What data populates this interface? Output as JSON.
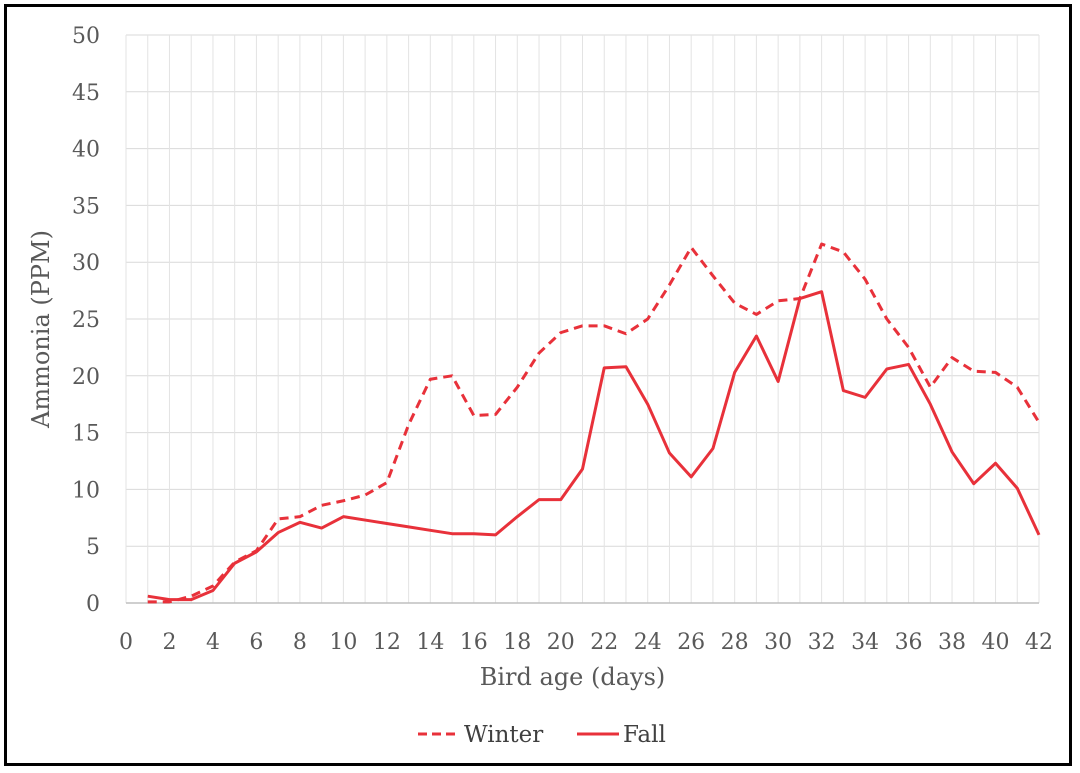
{
  "chart_data": {
    "type": "line",
    "title": "",
    "xlabel": "Bird age (days)",
    "ylabel": "Ammonia (PPM)",
    "xlim": [
      0,
      42
    ],
    "ylim": [
      0,
      50
    ],
    "x_ticks": [
      0,
      2,
      4,
      6,
      8,
      10,
      12,
      14,
      16,
      18,
      20,
      22,
      24,
      26,
      28,
      30,
      32,
      34,
      36,
      38,
      40,
      42
    ],
    "y_ticks": [
      0,
      5,
      10,
      15,
      20,
      25,
      30,
      35,
      40,
      45,
      50
    ],
    "grid": true,
    "legend_position": "bottom",
    "x": [
      1,
      2,
      3,
      4,
      5,
      6,
      7,
      8,
      9,
      10,
      11,
      12,
      13,
      14,
      15,
      16,
      17,
      18,
      19,
      20,
      21,
      22,
      23,
      24,
      25,
      26,
      27,
      28,
      29,
      30,
      31,
      32,
      33,
      34,
      35,
      36,
      37,
      38,
      39,
      40,
      41,
      42
    ],
    "series": [
      {
        "name": "Winter",
        "style": "dashed",
        "color": "#e8313a",
        "values": [
          0.1,
          0.1,
          0.6,
          1.5,
          3.6,
          4.6,
          7.4,
          7.6,
          8.6,
          9.0,
          9.5,
          10.6,
          15.7,
          19.7,
          20.0,
          16.5,
          16.6,
          19.0,
          22.0,
          23.8,
          24.4,
          24.4,
          23.7,
          25.0,
          28.0,
          31.3,
          28.8,
          26.4,
          25.4,
          26.6,
          26.8,
          31.6,
          30.9,
          28.5,
          25.0,
          22.5,
          19.0,
          21.6,
          20.4,
          20.3,
          19.0,
          15.9
        ]
      },
      {
        "name": "Fall",
        "style": "solid",
        "color": "#e8313a",
        "values": [
          0.6,
          0.3,
          0.3,
          1.1,
          3.5,
          4.5,
          6.2,
          7.1,
          6.6,
          7.6,
          7.3,
          7.0,
          6.7,
          6.4,
          6.1,
          6.1,
          6.0,
          7.6,
          9.1,
          9.1,
          11.8,
          20.7,
          20.8,
          17.5,
          13.2,
          11.1,
          13.6,
          20.3,
          23.5,
          19.5,
          26.8,
          27.4,
          18.7,
          18.1,
          20.6,
          21.0,
          17.5,
          13.3,
          10.5,
          12.3,
          10.1,
          6.0
        ]
      }
    ]
  }
}
